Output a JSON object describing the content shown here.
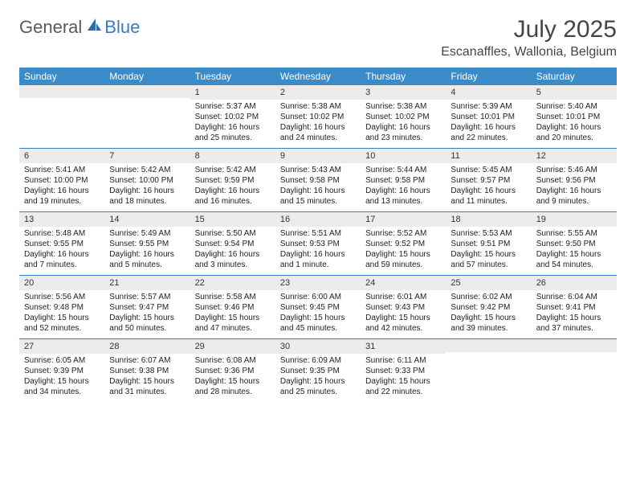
{
  "brand": {
    "general": "General",
    "blue": "Blue"
  },
  "title": "July 2025",
  "location": "Escanaffles, Wallonia, Belgium",
  "colors": {
    "header_bg": "#3b8bc8",
    "header_text": "#ffffff",
    "daynum_bg": "#ececec",
    "cell_text": "#222222",
    "rule": "#3b7bbf",
    "logo_gray": "#5a5a5a",
    "logo_blue": "#3b7bbf",
    "title_color": "#454545"
  },
  "day_names": [
    "Sunday",
    "Monday",
    "Tuesday",
    "Wednesday",
    "Thursday",
    "Friday",
    "Saturday"
  ],
  "weeks": [
    [
      {
        "n": "",
        "sr": "",
        "ss": "",
        "dl": ""
      },
      {
        "n": "",
        "sr": "",
        "ss": "",
        "dl": ""
      },
      {
        "n": "1",
        "sr": "Sunrise: 5:37 AM",
        "ss": "Sunset: 10:02 PM",
        "dl": "Daylight: 16 hours and 25 minutes."
      },
      {
        "n": "2",
        "sr": "Sunrise: 5:38 AM",
        "ss": "Sunset: 10:02 PM",
        "dl": "Daylight: 16 hours and 24 minutes."
      },
      {
        "n": "3",
        "sr": "Sunrise: 5:38 AM",
        "ss": "Sunset: 10:02 PM",
        "dl": "Daylight: 16 hours and 23 minutes."
      },
      {
        "n": "4",
        "sr": "Sunrise: 5:39 AM",
        "ss": "Sunset: 10:01 PM",
        "dl": "Daylight: 16 hours and 22 minutes."
      },
      {
        "n": "5",
        "sr": "Sunrise: 5:40 AM",
        "ss": "Sunset: 10:01 PM",
        "dl": "Daylight: 16 hours and 20 minutes."
      }
    ],
    [
      {
        "n": "6",
        "sr": "Sunrise: 5:41 AM",
        "ss": "Sunset: 10:00 PM",
        "dl": "Daylight: 16 hours and 19 minutes."
      },
      {
        "n": "7",
        "sr": "Sunrise: 5:42 AM",
        "ss": "Sunset: 10:00 PM",
        "dl": "Daylight: 16 hours and 18 minutes."
      },
      {
        "n": "8",
        "sr": "Sunrise: 5:42 AM",
        "ss": "Sunset: 9:59 PM",
        "dl": "Daylight: 16 hours and 16 minutes."
      },
      {
        "n": "9",
        "sr": "Sunrise: 5:43 AM",
        "ss": "Sunset: 9:58 PM",
        "dl": "Daylight: 16 hours and 15 minutes."
      },
      {
        "n": "10",
        "sr": "Sunrise: 5:44 AM",
        "ss": "Sunset: 9:58 PM",
        "dl": "Daylight: 16 hours and 13 minutes."
      },
      {
        "n": "11",
        "sr": "Sunrise: 5:45 AM",
        "ss": "Sunset: 9:57 PM",
        "dl": "Daylight: 16 hours and 11 minutes."
      },
      {
        "n": "12",
        "sr": "Sunrise: 5:46 AM",
        "ss": "Sunset: 9:56 PM",
        "dl": "Daylight: 16 hours and 9 minutes."
      }
    ],
    [
      {
        "n": "13",
        "sr": "Sunrise: 5:48 AM",
        "ss": "Sunset: 9:55 PM",
        "dl": "Daylight: 16 hours and 7 minutes."
      },
      {
        "n": "14",
        "sr": "Sunrise: 5:49 AM",
        "ss": "Sunset: 9:55 PM",
        "dl": "Daylight: 16 hours and 5 minutes."
      },
      {
        "n": "15",
        "sr": "Sunrise: 5:50 AM",
        "ss": "Sunset: 9:54 PM",
        "dl": "Daylight: 16 hours and 3 minutes."
      },
      {
        "n": "16",
        "sr": "Sunrise: 5:51 AM",
        "ss": "Sunset: 9:53 PM",
        "dl": "Daylight: 16 hours and 1 minute."
      },
      {
        "n": "17",
        "sr": "Sunrise: 5:52 AM",
        "ss": "Sunset: 9:52 PM",
        "dl": "Daylight: 15 hours and 59 minutes."
      },
      {
        "n": "18",
        "sr": "Sunrise: 5:53 AM",
        "ss": "Sunset: 9:51 PM",
        "dl": "Daylight: 15 hours and 57 minutes."
      },
      {
        "n": "19",
        "sr": "Sunrise: 5:55 AM",
        "ss": "Sunset: 9:50 PM",
        "dl": "Daylight: 15 hours and 54 minutes."
      }
    ],
    [
      {
        "n": "20",
        "sr": "Sunrise: 5:56 AM",
        "ss": "Sunset: 9:48 PM",
        "dl": "Daylight: 15 hours and 52 minutes."
      },
      {
        "n": "21",
        "sr": "Sunrise: 5:57 AM",
        "ss": "Sunset: 9:47 PM",
        "dl": "Daylight: 15 hours and 50 minutes."
      },
      {
        "n": "22",
        "sr": "Sunrise: 5:58 AM",
        "ss": "Sunset: 9:46 PM",
        "dl": "Daylight: 15 hours and 47 minutes."
      },
      {
        "n": "23",
        "sr": "Sunrise: 6:00 AM",
        "ss": "Sunset: 9:45 PM",
        "dl": "Daylight: 15 hours and 45 minutes."
      },
      {
        "n": "24",
        "sr": "Sunrise: 6:01 AM",
        "ss": "Sunset: 9:43 PM",
        "dl": "Daylight: 15 hours and 42 minutes."
      },
      {
        "n": "25",
        "sr": "Sunrise: 6:02 AM",
        "ss": "Sunset: 9:42 PM",
        "dl": "Daylight: 15 hours and 39 minutes."
      },
      {
        "n": "26",
        "sr": "Sunrise: 6:04 AM",
        "ss": "Sunset: 9:41 PM",
        "dl": "Daylight: 15 hours and 37 minutes."
      }
    ],
    [
      {
        "n": "27",
        "sr": "Sunrise: 6:05 AM",
        "ss": "Sunset: 9:39 PM",
        "dl": "Daylight: 15 hours and 34 minutes."
      },
      {
        "n": "28",
        "sr": "Sunrise: 6:07 AM",
        "ss": "Sunset: 9:38 PM",
        "dl": "Daylight: 15 hours and 31 minutes."
      },
      {
        "n": "29",
        "sr": "Sunrise: 6:08 AM",
        "ss": "Sunset: 9:36 PM",
        "dl": "Daylight: 15 hours and 28 minutes."
      },
      {
        "n": "30",
        "sr": "Sunrise: 6:09 AM",
        "ss": "Sunset: 9:35 PM",
        "dl": "Daylight: 15 hours and 25 minutes."
      },
      {
        "n": "31",
        "sr": "Sunrise: 6:11 AM",
        "ss": "Sunset: 9:33 PM",
        "dl": "Daylight: 15 hours and 22 minutes."
      },
      {
        "n": "",
        "sr": "",
        "ss": "",
        "dl": ""
      },
      {
        "n": "",
        "sr": "",
        "ss": "",
        "dl": ""
      }
    ]
  ]
}
